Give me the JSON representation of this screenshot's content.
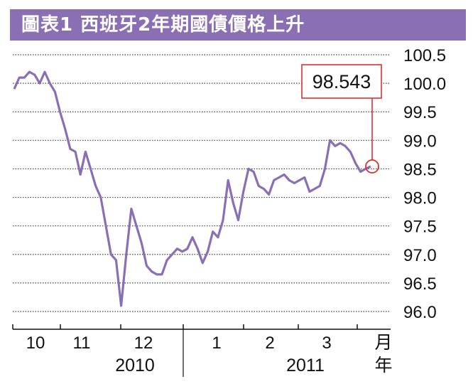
{
  "chart_data": {
    "type": "line",
    "title": "圖表1 西班牙2年期國債價格上升",
    "ylim": [
      96.0,
      100.5
    ],
    "y_ticks": [
      "100.5",
      "100.0",
      "99.5",
      "99.0",
      "98.5",
      "98.0",
      "97.5",
      "97.0",
      "96.5",
      "96.0"
    ],
    "x_month_labels": [
      "10",
      "11",
      "12",
      "1",
      "2",
      "3"
    ],
    "x_unit_label": "月",
    "x_unit_label2": "年",
    "year_labels": [
      "2010",
      "2011"
    ],
    "callout": "98.543",
    "series": [
      {
        "name": "西班牙2年期國債價格",
        "color": "#8a6fb5",
        "values": [
          99.9,
          100.1,
          100.1,
          100.2,
          100.15,
          100.0,
          100.2,
          100.0,
          99.85,
          99.5,
          99.2,
          98.85,
          98.8,
          98.4,
          98.8,
          98.5,
          98.2,
          98.0,
          97.5,
          97.0,
          96.9,
          96.1,
          97.0,
          97.8,
          97.5,
          97.2,
          96.8,
          96.7,
          96.65,
          96.65,
          96.9,
          97.0,
          97.1,
          97.05,
          97.1,
          97.3,
          97.1,
          96.85,
          97.05,
          97.4,
          97.3,
          97.6,
          98.3,
          97.9,
          97.6,
          98.1,
          98.5,
          98.45,
          98.2,
          98.15,
          98.05,
          98.3,
          98.35,
          98.4,
          98.3,
          98.25,
          98.3,
          98.35,
          98.1,
          98.15,
          98.2,
          98.5,
          99.0,
          98.9,
          98.95,
          98.9,
          98.8,
          98.6,
          98.45,
          98.5,
          98.543
        ]
      }
    ]
  }
}
